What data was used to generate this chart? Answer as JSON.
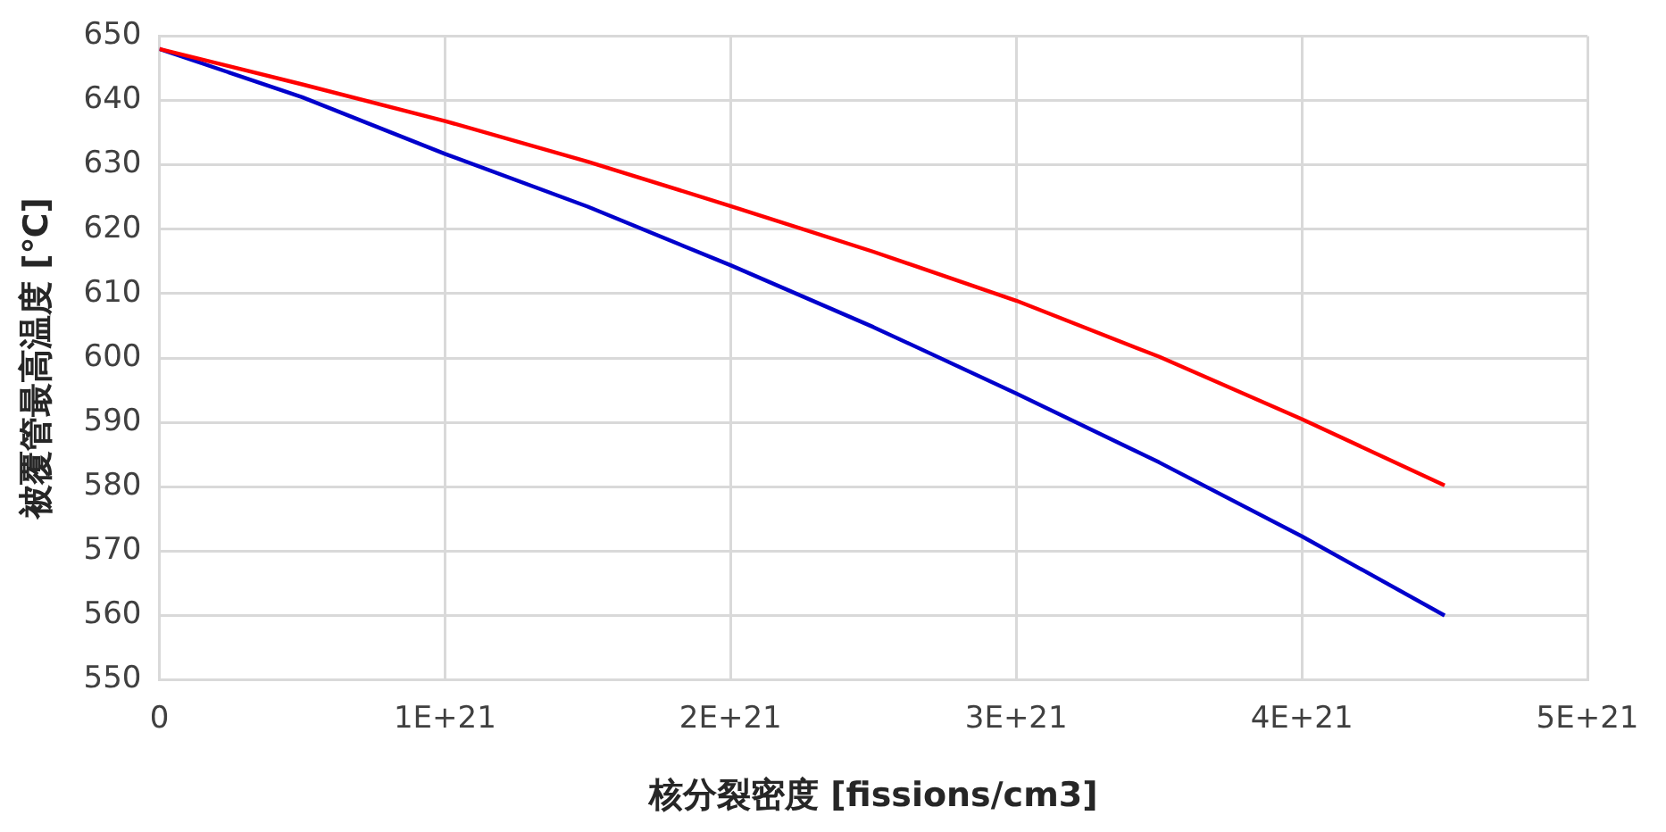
{
  "chart_data": {
    "type": "line",
    "xlabel": "核分裂密度 [fissions/cm3]",
    "ylabel": "被覆管最高温度 [℃]",
    "x": [
      0,
      5e+20,
      1e+21,
      1.5e+21,
      2e+21,
      2.5e+21,
      3e+21,
      3.5e+21,
      4e+21,
      4.5e+21
    ],
    "series": [
      {
        "color": "#ff0000",
        "values": [
          648,
          642.5,
          636.8,
          630.5,
          623.6,
          616.5,
          608.9,
          600.2,
          590.5,
          580.2
        ]
      },
      {
        "color": "#0000cc",
        "values": [
          648,
          640.5,
          631.7,
          623.5,
          614.4,
          604.8,
          594.5,
          583.8,
          572.3,
          560
        ]
      }
    ],
    "xlim": [
      0,
      5e+21
    ],
    "xticks": [
      0,
      {
        "value": 1e+21,
        "label": "1E+21"
      },
      {
        "value": 2e+21,
        "label": "2E+21"
      },
      {
        "value": 3e+21,
        "label": "3E+21"
      },
      {
        "value": 4e+21,
        "label": "4E+21"
      },
      {
        "value": 5e+21,
        "label": "5E+21"
      }
    ],
    "ylim": [
      550,
      650
    ],
    "yticks": [
      550,
      560,
      570,
      580,
      590,
      600,
      610,
      620,
      630,
      640,
      650
    ],
    "grid": true,
    "legend": false,
    "marker": "none",
    "line_style": "solid"
  }
}
